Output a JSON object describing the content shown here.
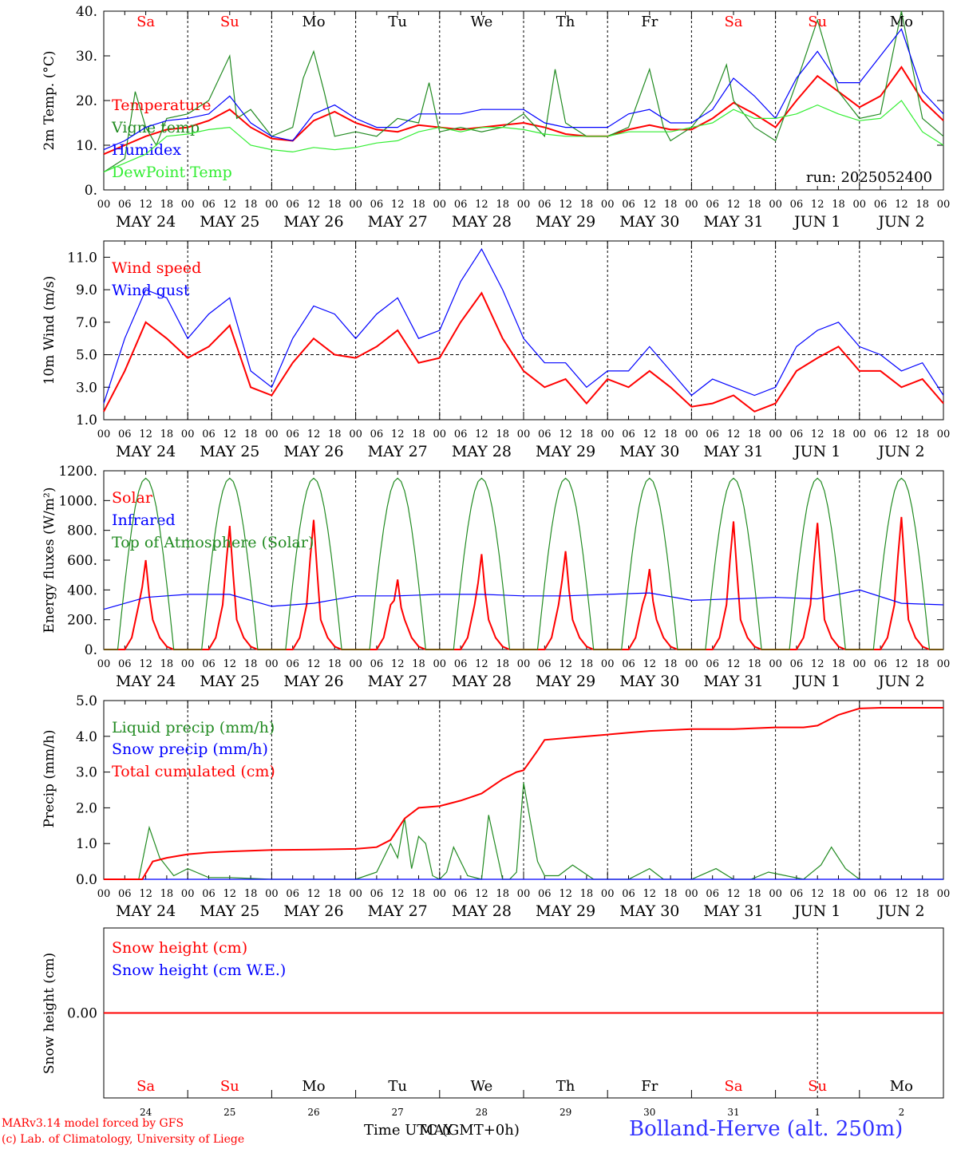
{
  "run_label": "run: 2025052400",
  "day_labels": [
    "MAY 24",
    "MAY 25",
    "MAY 26",
    "MAY 27",
    "MAY 28",
    "MAY 29",
    "MAY 30",
    "MAY 31",
    "JUN  1",
    "JUN  2"
  ],
  "weekdays": [
    "Sa",
    "Su",
    "Mo",
    "Tu",
    "We",
    "Th",
    "Fr",
    "Sa",
    "Su",
    "Mo"
  ],
  "weekday_colors": [
    "#ff0000",
    "#ff0000",
    "#000000",
    "#000000",
    "#000000",
    "#000000",
    "#000000",
    "#ff0000",
    "#ff0000",
    "#000000"
  ],
  "bottom_day_numbers": [
    "24",
    "25",
    "26",
    "27",
    "28",
    "29",
    "30",
    "31",
    "1",
    "2"
  ],
  "hour_ticks": [
    "00",
    "06",
    "12",
    "18"
  ],
  "footer": {
    "model": "MARv3.14 model forced by GFS",
    "lab": "(c) Lab. of Climatology, University of Liege",
    "time_label": "Time UTC (GMT+0h)",
    "time_label_overlay": "MAY",
    "station": "Bolland-Herve (alt. 250m)"
  },
  "chart_data": [
    {
      "type": "line",
      "ylabel": "2m Temp. (°C)",
      "yticks": [
        "0.",
        "10.",
        "20.",
        "30.",
        "40."
      ],
      "ylim": [
        0,
        40
      ],
      "x_unit": "hours since MAY 24 00 UTC",
      "xlim": [
        0,
        240
      ],
      "series": [
        {
          "name": "Temperature",
          "color": "#ff0000",
          "x": [
            0,
            6,
            12,
            18,
            24,
            30,
            36,
            42,
            48,
            54,
            60,
            66,
            72,
            78,
            84,
            90,
            96,
            102,
            108,
            114,
            120,
            126,
            132,
            138,
            144,
            150,
            156,
            162,
            168,
            174,
            180,
            186,
            192,
            198,
            204,
            210,
            216,
            222,
            228,
            234,
            240
          ],
          "values": [
            8,
            10,
            12,
            13.5,
            14,
            15.5,
            18,
            14,
            11.5,
            11,
            15.5,
            17.5,
            15,
            13.5,
            13,
            14.5,
            14,
            13.5,
            14,
            14.5,
            15,
            14,
            12.5,
            12,
            12,
            13.5,
            14.5,
            13.5,
            13.5,
            16,
            19.5,
            17,
            14,
            20,
            25.5,
            22,
            18.5,
            21,
            27.5,
            20,
            15.5
          ]
        },
        {
          "name": "Vigne temp",
          "color": "#228b22",
          "x": [
            0,
            6,
            9,
            12,
            15,
            18,
            24,
            30,
            36,
            38,
            42,
            48,
            54,
            57,
            60,
            63,
            66,
            72,
            78,
            84,
            90,
            93,
            96,
            102,
            108,
            114,
            120,
            126,
            129,
            132,
            138,
            144,
            150,
            156,
            160,
            162,
            168,
            174,
            178,
            180,
            186,
            192,
            198,
            204,
            210,
            216,
            222,
            228,
            234,
            240
          ],
          "values": [
            4,
            7,
            22,
            14,
            10,
            16,
            17,
            20,
            30,
            16,
            18,
            12,
            14,
            25,
            31,
            22,
            12,
            13,
            12,
            16,
            15,
            24,
            13,
            14,
            13,
            14,
            17,
            12,
            27,
            15,
            12,
            12,
            14,
            27,
            14,
            11,
            14,
            20,
            28,
            20,
            14,
            11,
            24,
            38,
            22,
            16,
            17,
            40,
            16,
            12
          ]
        },
        {
          "name": "Humidex",
          "color": "#0000ff",
          "x": [
            0,
            6,
            12,
            18,
            24,
            30,
            36,
            42,
            48,
            54,
            60,
            66,
            72,
            78,
            84,
            90,
            96,
            102,
            108,
            114,
            120,
            126,
            132,
            138,
            144,
            150,
            156,
            162,
            168,
            174,
            180,
            186,
            192,
            198,
            204,
            210,
            216,
            222,
            228,
            234,
            240
          ],
          "values": [
            9,
            11,
            14,
            15.5,
            16,
            17,
            21,
            15,
            12,
            11,
            17,
            19,
            16,
            14,
            14,
            17,
            17,
            17,
            18,
            18,
            18,
            15,
            14,
            14,
            14,
            17,
            18,
            15,
            15,
            18,
            25,
            21,
            16,
            25,
            31,
            24,
            24,
            30,
            36,
            22,
            17
          ]
        },
        {
          "name": "DewPoint Temp",
          "color": "#33ee33",
          "x": [
            0,
            6,
            12,
            18,
            24,
            30,
            36,
            42,
            48,
            54,
            60,
            66,
            72,
            78,
            84,
            90,
            96,
            102,
            108,
            114,
            120,
            126,
            132,
            138,
            144,
            150,
            156,
            162,
            168,
            174,
            180,
            186,
            192,
            198,
            204,
            210,
            216,
            222,
            228,
            234,
            240
          ],
          "values": [
            4,
            6,
            8,
            12,
            12.5,
            13.5,
            14,
            10,
            9,
            8.5,
            9.5,
            9,
            9.5,
            10.5,
            11,
            13,
            14,
            13,
            14,
            14,
            13.5,
            12.5,
            12,
            12,
            12,
            13,
            13,
            13,
            14,
            15,
            18,
            16,
            16,
            17,
            19,
            17,
            15.5,
            16,
            20,
            13,
            10
          ]
        }
      ]
    },
    {
      "type": "line",
      "ylabel": "10m Wind (m/s)",
      "yticks": [
        "1.0",
        "3.0",
        "5.0",
        "7.0",
        "9.0",
        "11.0"
      ],
      "ylim": [
        1,
        12
      ],
      "reference_line": 5,
      "series": [
        {
          "name": "Wind speed",
          "color": "#ff0000",
          "x": [
            0,
            6,
            12,
            18,
            24,
            30,
            36,
            42,
            48,
            54,
            60,
            66,
            72,
            78,
            84,
            90,
            96,
            102,
            108,
            114,
            120,
            126,
            132,
            138,
            144,
            150,
            156,
            162,
            168,
            174,
            180,
            186,
            192,
            198,
            204,
            210,
            216,
            222,
            228,
            234,
            240
          ],
          "values": [
            1.5,
            4,
            7,
            6,
            4.8,
            5.5,
            6.8,
            3,
            2.5,
            4.5,
            6,
            5,
            4.8,
            5.5,
            6.5,
            4.5,
            4.8,
            7,
            8.8,
            6,
            4,
            3,
            3.5,
            2,
            3.5,
            3,
            4,
            3,
            1.8,
            2,
            2.5,
            1.5,
            2,
            4,
            4.8,
            5.5,
            4,
            4,
            3,
            3.5,
            2
          ]
        },
        {
          "name": "Wind gust",
          "color": "#0000ff",
          "x": [
            0,
            6,
            12,
            18,
            24,
            30,
            36,
            42,
            48,
            54,
            60,
            66,
            72,
            78,
            84,
            90,
            96,
            102,
            108,
            114,
            120,
            126,
            132,
            138,
            144,
            150,
            156,
            162,
            168,
            174,
            180,
            186,
            192,
            198,
            204,
            210,
            216,
            222,
            228,
            234,
            240
          ],
          "values": [
            2,
            6,
            9,
            8.5,
            6,
            7.5,
            8.5,
            4,
            3,
            6,
            8,
            7.5,
            6,
            7.5,
            8.5,
            6,
            6.5,
            9.5,
            11.5,
            9,
            6,
            4.5,
            4.5,
            3,
            4,
            4,
            5.5,
            4,
            2.5,
            3.5,
            3,
            2.5,
            3,
            5.5,
            6.5,
            7,
            5.5,
            5,
            4,
            4.5,
            2.5
          ]
        }
      ]
    },
    {
      "type": "line",
      "ylabel": "Energy fluxes (W/m²)",
      "yticks": [
        "0.",
        "200.",
        "400.",
        "600.",
        "800.",
        "1000.",
        "1200."
      ],
      "ylim": [
        0,
        1200
      ],
      "series": [
        {
          "name": "Solar",
          "color": "#ff0000",
          "peaks": [
            600,
            830,
            870,
            470,
            640,
            660,
            540,
            860,
            850,
            890
          ]
        },
        {
          "name": "Infrared",
          "color": "#0000ff",
          "x": [
            0,
            12,
            24,
            36,
            48,
            60,
            72,
            84,
            96,
            108,
            120,
            132,
            144,
            156,
            168,
            180,
            192,
            204,
            216,
            228,
            240
          ],
          "values": [
            270,
            350,
            370,
            370,
            290,
            310,
            360,
            360,
            370,
            370,
            360,
            360,
            370,
            380,
            330,
            340,
            350,
            340,
            400,
            310,
            300
          ]
        },
        {
          "name": "Top of Atmosphere (Solar)",
          "color": "#228b22",
          "peak": 1150,
          "daylight_hours": [
            4,
            20
          ]
        }
      ]
    },
    {
      "type": "line",
      "ylabel": "Precip (mm/h)",
      "yticks": [
        "0.0",
        "1.0",
        "2.0",
        "3.0",
        "4.0",
        "5.0"
      ],
      "ylim": [
        0,
        5
      ],
      "series": [
        {
          "name": "Liquid precip (mm/h)",
          "color": "#228b22",
          "x": [
            0,
            10,
            13,
            16,
            20,
            24,
            30,
            36,
            48,
            60,
            72,
            78,
            82,
            84,
            86,
            88,
            90,
            92,
            94,
            96,
            98,
            100,
            104,
            108,
            110,
            114,
            116,
            118,
            120,
            124,
            126,
            130,
            134,
            140,
            150,
            156,
            160,
            168,
            175,
            180,
            185,
            190,
            200,
            205,
            208,
            212,
            216,
            222,
            240
          ],
          "values": [
            0,
            0,
            1.45,
            0.6,
            0.1,
            0.3,
            0.05,
            0.05,
            0,
            0,
            0,
            0.2,
            1.0,
            0.6,
            1.7,
            0.3,
            1.2,
            1.0,
            0.1,
            0,
            0.2,
            0.9,
            0.1,
            0,
            1.8,
            0,
            0,
            0.2,
            2.7,
            0.5,
            0.1,
            0.1,
            0.4,
            0,
            0,
            0.3,
            0,
            0,
            0.3,
            0,
            0,
            0.2,
            0,
            0.4,
            0.9,
            0.3,
            0,
            0,
            0
          ]
        },
        {
          "name": "Snow precip (mm/h)",
          "color": "#0000ff",
          "x": [
            0,
            240
          ],
          "values": [
            0,
            0
          ]
        },
        {
          "name": "Total cumulated (cm)",
          "color": "#ff0000",
          "x": [
            0,
            11,
            14,
            18,
            24,
            30,
            36,
            48,
            60,
            72,
            78,
            82,
            86,
            90,
            96,
            102,
            108,
            114,
            118,
            120,
            124,
            126,
            132,
            144,
            150,
            156,
            168,
            180,
            192,
            196,
            200,
            204,
            210,
            216,
            222,
            240
          ],
          "values": [
            0,
            0,
            0.5,
            0.6,
            0.7,
            0.75,
            0.78,
            0.82,
            0.83,
            0.85,
            0.9,
            1.1,
            1.7,
            2.0,
            2.05,
            2.2,
            2.4,
            2.8,
            3.0,
            3.05,
            3.6,
            3.9,
            3.95,
            4.05,
            4.1,
            4.15,
            4.2,
            4.2,
            4.25,
            4.25,
            4.25,
            4.3,
            4.6,
            4.78,
            4.8,
            4.8
          ]
        }
      ]
    },
    {
      "type": "line",
      "ylabel": "Snow height (cm)",
      "yticks": [
        "0.00"
      ],
      "series": [
        {
          "name": "Snow height (cm)",
          "color": "#ff0000",
          "x": [
            0,
            240
          ],
          "values": [
            0,
            0
          ]
        },
        {
          "name": "Snow height (cm W.E.)",
          "color": "#0000ff",
          "x": [],
          "values": []
        }
      ]
    }
  ]
}
